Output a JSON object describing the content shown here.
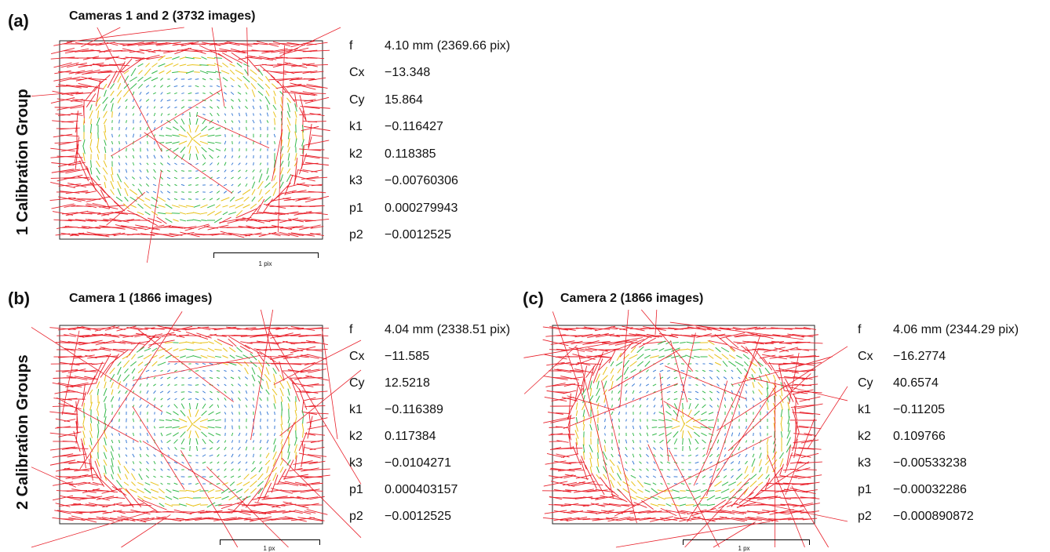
{
  "row_labels": {
    "top": "1 Calibration Group",
    "bottom": "2 Calibration Groups"
  },
  "panels": [
    {
      "letter": "(a)",
      "title": "Cameras 1 and 2 (3732 images)",
      "scale_label": "1 pix",
      "params": [
        {
          "name": "f",
          "value": "4.10 mm (2369.66 pix)"
        },
        {
          "name": "Cx",
          "value": "−13.348"
        },
        {
          "name": "Cy",
          "value": "15.864"
        },
        {
          "name": "k1",
          "value": "−0.116427"
        },
        {
          "name": "k2",
          "value": "0.118385"
        },
        {
          "name": "k3",
          "value": "−0.00760306"
        },
        {
          "name": "p1",
          "value": "0.000279943"
        },
        {
          "name": "p2",
          "value": "−0.0012525"
        }
      ]
    },
    {
      "letter": "(b)",
      "title": "Camera 1 (1866 images)",
      "scale_label": "1 px",
      "params": [
        {
          "name": "f",
          "value": "4.04 mm (2338.51 pix)"
        },
        {
          "name": "Cx",
          "value": "−11.585"
        },
        {
          "name": "Cy",
          "value": "12.5218"
        },
        {
          "name": "k1",
          "value": "−0.116389"
        },
        {
          "name": "k2",
          "value": "0.117384"
        },
        {
          "name": "k3",
          "value": "−0.0104271"
        },
        {
          "name": "p1",
          "value": "0.000403157"
        },
        {
          "name": "p2",
          "value": "−0.0012525"
        }
      ]
    },
    {
      "letter": "(c)",
      "title": "Camera 2 (1866 images)",
      "scale_label": "1 px",
      "params": [
        {
          "name": "f",
          "value": "4.06 mm (2344.29 pix)"
        },
        {
          "name": "Cx",
          "value": "−16.2774"
        },
        {
          "name": "Cy",
          "value": "40.6574"
        },
        {
          "name": "k1",
          "value": "−0.11205"
        },
        {
          "name": "k2",
          "value": "0.109766"
        },
        {
          "name": "k3",
          "value": "−0.00533238"
        },
        {
          "name": "p1",
          "value": "−0.00032286"
        },
        {
          "name": "p2",
          "value": "−0.000890872"
        }
      ]
    }
  ],
  "colors": {
    "large_error": "#e8202a",
    "mid_error": "#e8c21a",
    "small_error": "#33b84a",
    "tiny_error": "#3a7bd5"
  }
}
